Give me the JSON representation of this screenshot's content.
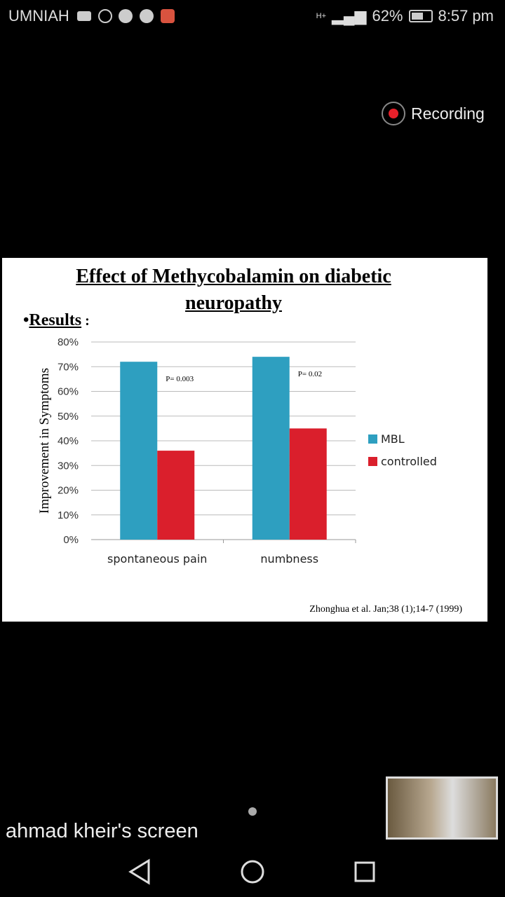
{
  "status_bar": {
    "carrier": "UMNIAH",
    "battery": "62%",
    "time": "8:57 pm",
    "network": "H+",
    "battery_level": 0.62
  },
  "recording": {
    "label": "Recording"
  },
  "slide": {
    "title_line1": "Effect of Methycobalamin on diabetic",
    "title_line2": "neuropathy",
    "bullet": "•",
    "results_label": "Results",
    "results_colon": " :",
    "citation": "Zhonghua et al. Jan;38 (1);14-7 (1999)"
  },
  "chart_data": {
    "type": "bar",
    "categories": [
      "spontaneous pain",
      "numbness"
    ],
    "series": [
      {
        "name": "MBL",
        "values": [
          72,
          74
        ],
        "color": "#2e9fc0"
      },
      {
        "name": "controlled",
        "values": [
          36,
          45
        ],
        "color": "#da1f2c"
      }
    ],
    "ylabel": "Improvement in Symptoms",
    "ylim": [
      0,
      80
    ],
    "yticks": [
      "0%",
      "10%",
      "20%",
      "30%",
      "40%",
      "50%",
      "60%",
      "70%",
      "80%"
    ],
    "annotations": [
      "P= 0.003",
      "P= 0.02"
    ],
    "legend_position": "right",
    "grid": true
  },
  "screen_share": {
    "name": "ahmad kheir's screen"
  }
}
